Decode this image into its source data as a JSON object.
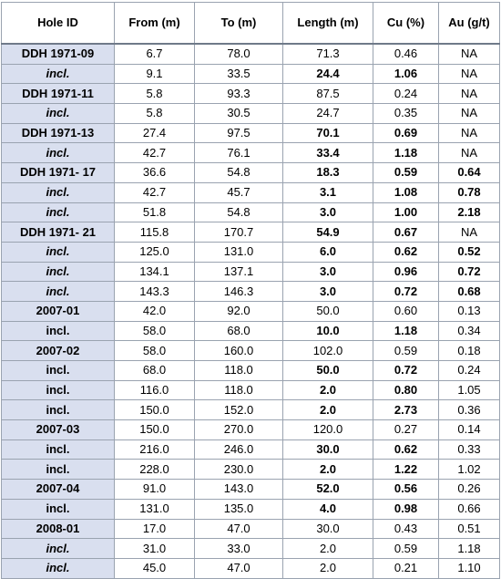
{
  "columns": [
    "Hole ID",
    "From (m)",
    "To (m)",
    "Length (m)",
    "Cu (%)",
    "Au (g/t)"
  ],
  "rows": [
    {
      "hole": "DDH 1971-09",
      "sub": false,
      "from": "6.7",
      "to": "78.0",
      "len": "71.3",
      "cu": "0.46",
      "au": "NA",
      "b": [
        0,
        0,
        0,
        0,
        0
      ]
    },
    {
      "hole": "incl.",
      "sub": true,
      "italic": true,
      "from": "9.1",
      "to": "33.5",
      "len": "24.4",
      "cu": "1.06",
      "au": "NA",
      "b": [
        0,
        0,
        1,
        1,
        0
      ]
    },
    {
      "hole": "DDH 1971-11",
      "sub": false,
      "from": "5.8",
      "to": "93.3",
      "len": "87.5",
      "cu": "0.24",
      "au": "NA",
      "b": [
        0,
        0,
        0,
        0,
        0
      ]
    },
    {
      "hole": "incl.",
      "sub": true,
      "italic": true,
      "from": "5.8",
      "to": "30.5",
      "len": "24.7",
      "cu": "0.35",
      "au": "NA",
      "b": [
        0,
        0,
        0,
        0,
        0
      ]
    },
    {
      "hole": "DDH 1971-13",
      "sub": false,
      "from": "27.4",
      "to": "97.5",
      "len": "70.1",
      "cu": "0.69",
      "au": "NA",
      "b": [
        0,
        0,
        1,
        1,
        0
      ]
    },
    {
      "hole": "incl.",
      "sub": true,
      "italic": true,
      "from": "42.7",
      "to": "76.1",
      "len": "33.4",
      "cu": "1.18",
      "au": "NA",
      "b": [
        0,
        0,
        1,
        1,
        0
      ]
    },
    {
      "hole": "DDH 1971- 17",
      "sub": false,
      "from": "36.6",
      "to": "54.8",
      "len": "18.3",
      "cu": "0.59",
      "au": "0.64",
      "b": [
        0,
        0,
        1,
        1,
        1
      ]
    },
    {
      "hole": "incl.",
      "sub": true,
      "italic": true,
      "from": "42.7",
      "to": "45.7",
      "len": "3.1",
      "cu": "1.08",
      "au": "0.78",
      "b": [
        0,
        0,
        1,
        1,
        1
      ]
    },
    {
      "hole": "incl.",
      "sub": true,
      "italic": true,
      "from": "51.8",
      "to": "54.8",
      "len": "3.0",
      "cu": "1.00",
      "au": "2.18",
      "b": [
        0,
        0,
        1,
        1,
        1
      ]
    },
    {
      "hole": "DDH 1971- 21",
      "sub": false,
      "from": "115.8",
      "to": "170.7",
      "len": "54.9",
      "cu": "0.67",
      "au": "NA",
      "b": [
        0,
        0,
        1,
        1,
        0
      ]
    },
    {
      "hole": "incl.",
      "sub": true,
      "italic": true,
      "from": "125.0",
      "to": "131.0",
      "len": "6.0",
      "cu": "0.62",
      "au": "0.52",
      "b": [
        0,
        0,
        1,
        1,
        1
      ]
    },
    {
      "hole": "incl.",
      "sub": true,
      "italic": true,
      "from": "134.1",
      "to": "137.1",
      "len": "3.0",
      "cu": "0.96",
      "au": "0.72",
      "b": [
        0,
        0,
        1,
        1,
        1
      ]
    },
    {
      "hole": "incl.",
      "sub": true,
      "italic": true,
      "from": "143.3",
      "to": "146.3",
      "len": "3.0",
      "cu": "0.72",
      "au": "0.68",
      "b": [
        0,
        0,
        1,
        1,
        1
      ]
    },
    {
      "hole": "2007-01",
      "sub": false,
      "from": "42.0",
      "to": "92.0",
      "len": "50.0",
      "cu": "0.60",
      "au": "0.13",
      "b": [
        0,
        0,
        0,
        0,
        0
      ]
    },
    {
      "hole": "incl.",
      "sub": true,
      "italic": false,
      "from": "58.0",
      "to": "68.0",
      "len": "10.0",
      "cu": "1.18",
      "au": "0.34",
      "b": [
        0,
        0,
        1,
        1,
        0
      ]
    },
    {
      "hole": "2007-02",
      "sub": false,
      "from": "58.0",
      "to": "160.0",
      "len": "102.0",
      "cu": "0.59",
      "au": "0.18",
      "b": [
        0,
        0,
        0,
        0,
        0
      ]
    },
    {
      "hole": "incl.",
      "sub": true,
      "italic": false,
      "from": "68.0",
      "to": "118.0",
      "len": "50.0",
      "cu": "0.72",
      "au": "0.24",
      "b": [
        0,
        0,
        1,
        1,
        0
      ]
    },
    {
      "hole": "incl.",
      "sub": true,
      "italic": false,
      "from": "116.0",
      "to": "118.0",
      "len": "2.0",
      "cu": "0.80",
      "au": "1.05",
      "b": [
        0,
        0,
        1,
        1,
        0
      ]
    },
    {
      "hole": "incl.",
      "sub": true,
      "italic": false,
      "from": "150.0",
      "to": "152.0",
      "len": "2.0",
      "cu": "2.73",
      "au": "0.36",
      "b": [
        0,
        0,
        1,
        1,
        0
      ]
    },
    {
      "hole": "2007-03",
      "sub": false,
      "from": "150.0",
      "to": "270.0",
      "len": "120.0",
      "cu": "0.27",
      "au": "0.14",
      "b": [
        0,
        0,
        0,
        0,
        0
      ]
    },
    {
      "hole": "incl.",
      "sub": true,
      "italic": false,
      "from": "216.0",
      "to": "246.0",
      "len": "30.0",
      "cu": "0.62",
      "au": "0.33",
      "b": [
        0,
        0,
        1,
        1,
        0
      ]
    },
    {
      "hole": "incl.",
      "sub": true,
      "italic": false,
      "from": "228.0",
      "to": "230.0",
      "len": "2.0",
      "cu": "1.22",
      "au": "1.02",
      "b": [
        0,
        0,
        1,
        1,
        0
      ]
    },
    {
      "hole": "2007-04",
      "sub": false,
      "from": "91.0",
      "to": "143.0",
      "len": "52.0",
      "cu": "0.56",
      "au": "0.26",
      "b": [
        0,
        0,
        1,
        1,
        0
      ]
    },
    {
      "hole": "incl.",
      "sub": true,
      "italic": false,
      "from": "131.0",
      "to": "135.0",
      "len": "4.0",
      "cu": "0.98",
      "au": "0.66",
      "b": [
        0,
        0,
        1,
        1,
        0
      ]
    },
    {
      "hole": "2008-01",
      "sub": false,
      "from": "17.0",
      "to": "47.0",
      "len": "30.0",
      "cu": "0.43",
      "au": "0.51",
      "b": [
        0,
        0,
        0,
        0,
        0
      ]
    },
    {
      "hole": "incl.",
      "sub": true,
      "italic": true,
      "from": "31.0",
      "to": "33.0",
      "len": "2.0",
      "cu": "0.59",
      "au": "1.18",
      "b": [
        0,
        0,
        0,
        0,
        0
      ]
    },
    {
      "hole": "incl.",
      "sub": true,
      "italic": true,
      "from": "45.0",
      "to": "47.0",
      "len": "2.0",
      "cu": "0.21",
      "au": "1.10",
      "b": [
        0,
        0,
        0,
        0,
        0
      ]
    }
  ]
}
